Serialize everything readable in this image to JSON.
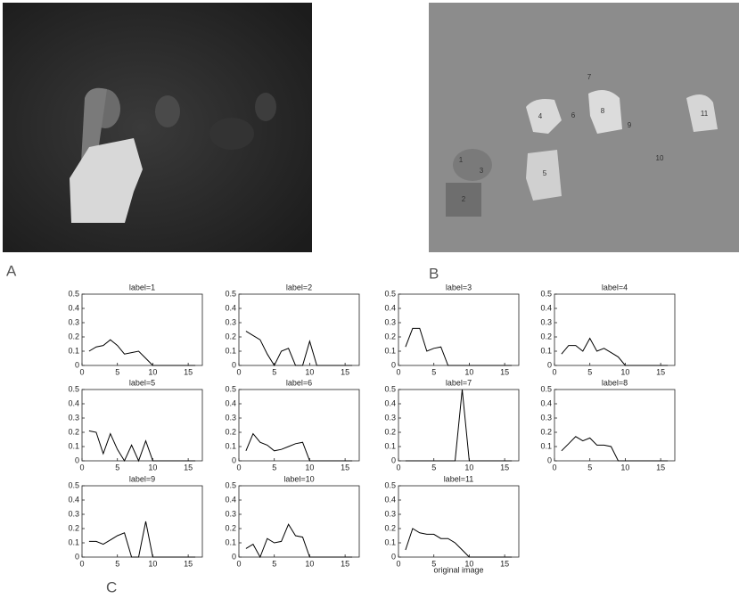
{
  "panels": {
    "a": "A",
    "b": "B",
    "c": "C"
  },
  "segment_labels": [
    "1",
    "2",
    "3",
    "4",
    "5",
    "6",
    "7",
    "8",
    "9",
    "10",
    "11"
  ],
  "chart_data": [
    {
      "type": "line",
      "title": "label=1",
      "color": "#000",
      "x": [
        1,
        2,
        3,
        4,
        5,
        6,
        7,
        8,
        9,
        10,
        11,
        12,
        13,
        14,
        15,
        16
      ],
      "values": [
        0.1,
        0.13,
        0.14,
        0.18,
        0.14,
        0.08,
        0.09,
        0.1,
        0.05,
        0,
        0,
        0,
        0,
        0,
        0,
        0
      ],
      "xlim": [
        0,
        17
      ],
      "ylim": [
        0,
        0.5
      ],
      "xticks": [
        0,
        5,
        10,
        15
      ],
      "yticks": [
        0,
        0.1,
        0.2,
        0.3,
        0.4,
        0.5
      ]
    },
    {
      "type": "line",
      "title": "label=2",
      "color": "#000",
      "x": [
        1,
        2,
        3,
        4,
        5,
        6,
        7,
        8,
        9,
        10,
        11,
        12,
        13,
        14,
        15,
        16
      ],
      "values": [
        0.24,
        0.21,
        0.18,
        0.08,
        0,
        0.1,
        0.12,
        0,
        0,
        0.17,
        0,
        0,
        0,
        0,
        0,
        0
      ],
      "xlim": [
        0,
        17
      ],
      "ylim": [
        0,
        0.5
      ],
      "xticks": [
        0,
        5,
        10,
        15
      ],
      "yticks": [
        0,
        0.1,
        0.2,
        0.3,
        0.4,
        0.5
      ]
    },
    {
      "type": "line",
      "title": "label=3",
      "color": "#000",
      "x": [
        1,
        2,
        3,
        4,
        5,
        6,
        7,
        8,
        9,
        10,
        11,
        12,
        13,
        14,
        15,
        16
      ],
      "values": [
        0.13,
        0.26,
        0.26,
        0.1,
        0.12,
        0.13,
        0,
        0,
        0,
        0,
        0,
        0,
        0,
        0,
        0,
        0
      ],
      "xlim": [
        0,
        17
      ],
      "ylim": [
        0,
        0.5
      ],
      "xticks": [
        0,
        5,
        10,
        15
      ],
      "yticks": [
        0,
        0.1,
        0.2,
        0.3,
        0.4,
        0.5
      ]
    },
    {
      "type": "line",
      "title": "label=4",
      "color": "#000",
      "x": [
        1,
        2,
        3,
        4,
        5,
        6,
        7,
        8,
        9,
        10,
        11,
        12,
        13,
        14,
        15,
        16
      ],
      "values": [
        0.08,
        0.14,
        0.14,
        0.1,
        0.19,
        0.1,
        0.12,
        0.09,
        0.06,
        0,
        0,
        0,
        0,
        0,
        0,
        0
      ],
      "xlim": [
        0,
        17
      ],
      "ylim": [
        0,
        0.5
      ],
      "xticks": [
        0,
        5,
        10,
        15
      ],
      "yticks": [
        0,
        0.1,
        0.2,
        0.3,
        0.4,
        0.5
      ]
    },
    {
      "type": "line",
      "title": "label=5",
      "color": "#000",
      "x": [
        1,
        2,
        3,
        4,
        5,
        6,
        7,
        8,
        9,
        10,
        11,
        12,
        13,
        14,
        15,
        16
      ],
      "values": [
        0.21,
        0.2,
        0.05,
        0.19,
        0.08,
        0,
        0.11,
        0,
        0.14,
        0,
        0,
        0,
        0,
        0,
        0,
        0
      ],
      "xlim": [
        0,
        17
      ],
      "ylim": [
        0,
        0.5
      ],
      "xticks": [
        0,
        5,
        10,
        15
      ],
      "yticks": [
        0,
        0.1,
        0.2,
        0.3,
        0.4,
        0.5
      ]
    },
    {
      "type": "line",
      "title": "label=6",
      "color": "#000",
      "x": [
        1,
        2,
        3,
        4,
        5,
        6,
        7,
        8,
        9,
        10,
        11,
        12,
        13,
        14,
        15,
        16
      ],
      "values": [
        0.07,
        0.19,
        0.13,
        0.11,
        0.07,
        0.08,
        0.1,
        0.12,
        0.13,
        0,
        0,
        0,
        0,
        0,
        0,
        0
      ],
      "xlim": [
        0,
        17
      ],
      "ylim": [
        0,
        0.5
      ],
      "xticks": [
        0,
        5,
        10,
        15
      ],
      "yticks": [
        0,
        0.1,
        0.2,
        0.3,
        0.4,
        0.5
      ]
    },
    {
      "type": "line",
      "title": "label=7",
      "color": "#000",
      "x": [
        1,
        2,
        3,
        4,
        5,
        6,
        7,
        8,
        9,
        10,
        11,
        12,
        13,
        14,
        15,
        16
      ],
      "values": [
        0,
        0,
        0,
        0,
        0,
        0,
        0,
        0,
        0.5,
        0,
        0,
        0,
        0,
        0,
        0,
        0
      ],
      "xlim": [
        0,
        17
      ],
      "ylim": [
        0,
        0.5
      ],
      "xticks": [
        0,
        5,
        10,
        15
      ],
      "yticks": [
        0,
        0.1,
        0.2,
        0.3,
        0.4,
        0.5
      ]
    },
    {
      "type": "line",
      "title": "label=8",
      "color": "#000",
      "x": [
        1,
        2,
        3,
        4,
        5,
        6,
        7,
        8,
        9,
        10,
        11,
        12,
        13,
        14,
        15,
        16
      ],
      "values": [
        0.07,
        0.12,
        0.17,
        0.14,
        0.16,
        0.11,
        0.11,
        0.1,
        0,
        0,
        0,
        0,
        0,
        0,
        0,
        0
      ],
      "xlim": [
        0,
        17
      ],
      "ylim": [
        0,
        0.5
      ],
      "xticks": [
        0,
        5,
        10,
        15
      ],
      "yticks": [
        0,
        0.1,
        0.2,
        0.3,
        0.4,
        0.5
      ]
    },
    {
      "type": "line",
      "title": "label=9",
      "color": "#000",
      "x": [
        1,
        2,
        3,
        4,
        5,
        6,
        7,
        8,
        9,
        10,
        11,
        12,
        13,
        14,
        15,
        16
      ],
      "values": [
        0.11,
        0.11,
        0.09,
        0.12,
        0.15,
        0.17,
        0,
        0,
        0.25,
        0,
        0,
        0,
        0,
        0,
        0,
        0
      ],
      "xlim": [
        0,
        17
      ],
      "ylim": [
        0,
        0.5
      ],
      "xticks": [
        0,
        5,
        10,
        15
      ],
      "yticks": [
        0,
        0.1,
        0.2,
        0.3,
        0.4,
        0.5
      ]
    },
    {
      "type": "line",
      "title": "label=10",
      "color": "#000",
      "x": [
        1,
        2,
        3,
        4,
        5,
        6,
        7,
        8,
        9,
        10,
        11,
        12,
        13,
        14,
        15,
        16
      ],
      "values": [
        0.06,
        0.09,
        0,
        0.13,
        0.1,
        0.11,
        0.23,
        0.15,
        0.14,
        0,
        0,
        0,
        0,
        0,
        0,
        0
      ],
      "xlim": [
        0,
        17
      ],
      "ylim": [
        0,
        0.5
      ],
      "xticks": [
        0,
        5,
        10,
        15
      ],
      "yticks": [
        0,
        0.1,
        0.2,
        0.3,
        0.4,
        0.5
      ]
    },
    {
      "type": "line",
      "title": "label=11",
      "xlabel": "original image",
      "color": "#000",
      "x": [
        1,
        2,
        3,
        4,
        5,
        6,
        7,
        8,
        9,
        10,
        11,
        12,
        13,
        14,
        15,
        16
      ],
      "values": [
        0.05,
        0.2,
        0.17,
        0.16,
        0.16,
        0.13,
        0.13,
        0.1,
        0.05,
        0,
        0,
        0,
        0,
        0,
        0,
        0
      ],
      "xlim": [
        0,
        17
      ],
      "ylim": [
        0,
        0.5
      ],
      "xticks": [
        0,
        5,
        10,
        15
      ],
      "yticks": [
        0,
        0.1,
        0.2,
        0.3,
        0.4,
        0.5
      ]
    }
  ]
}
